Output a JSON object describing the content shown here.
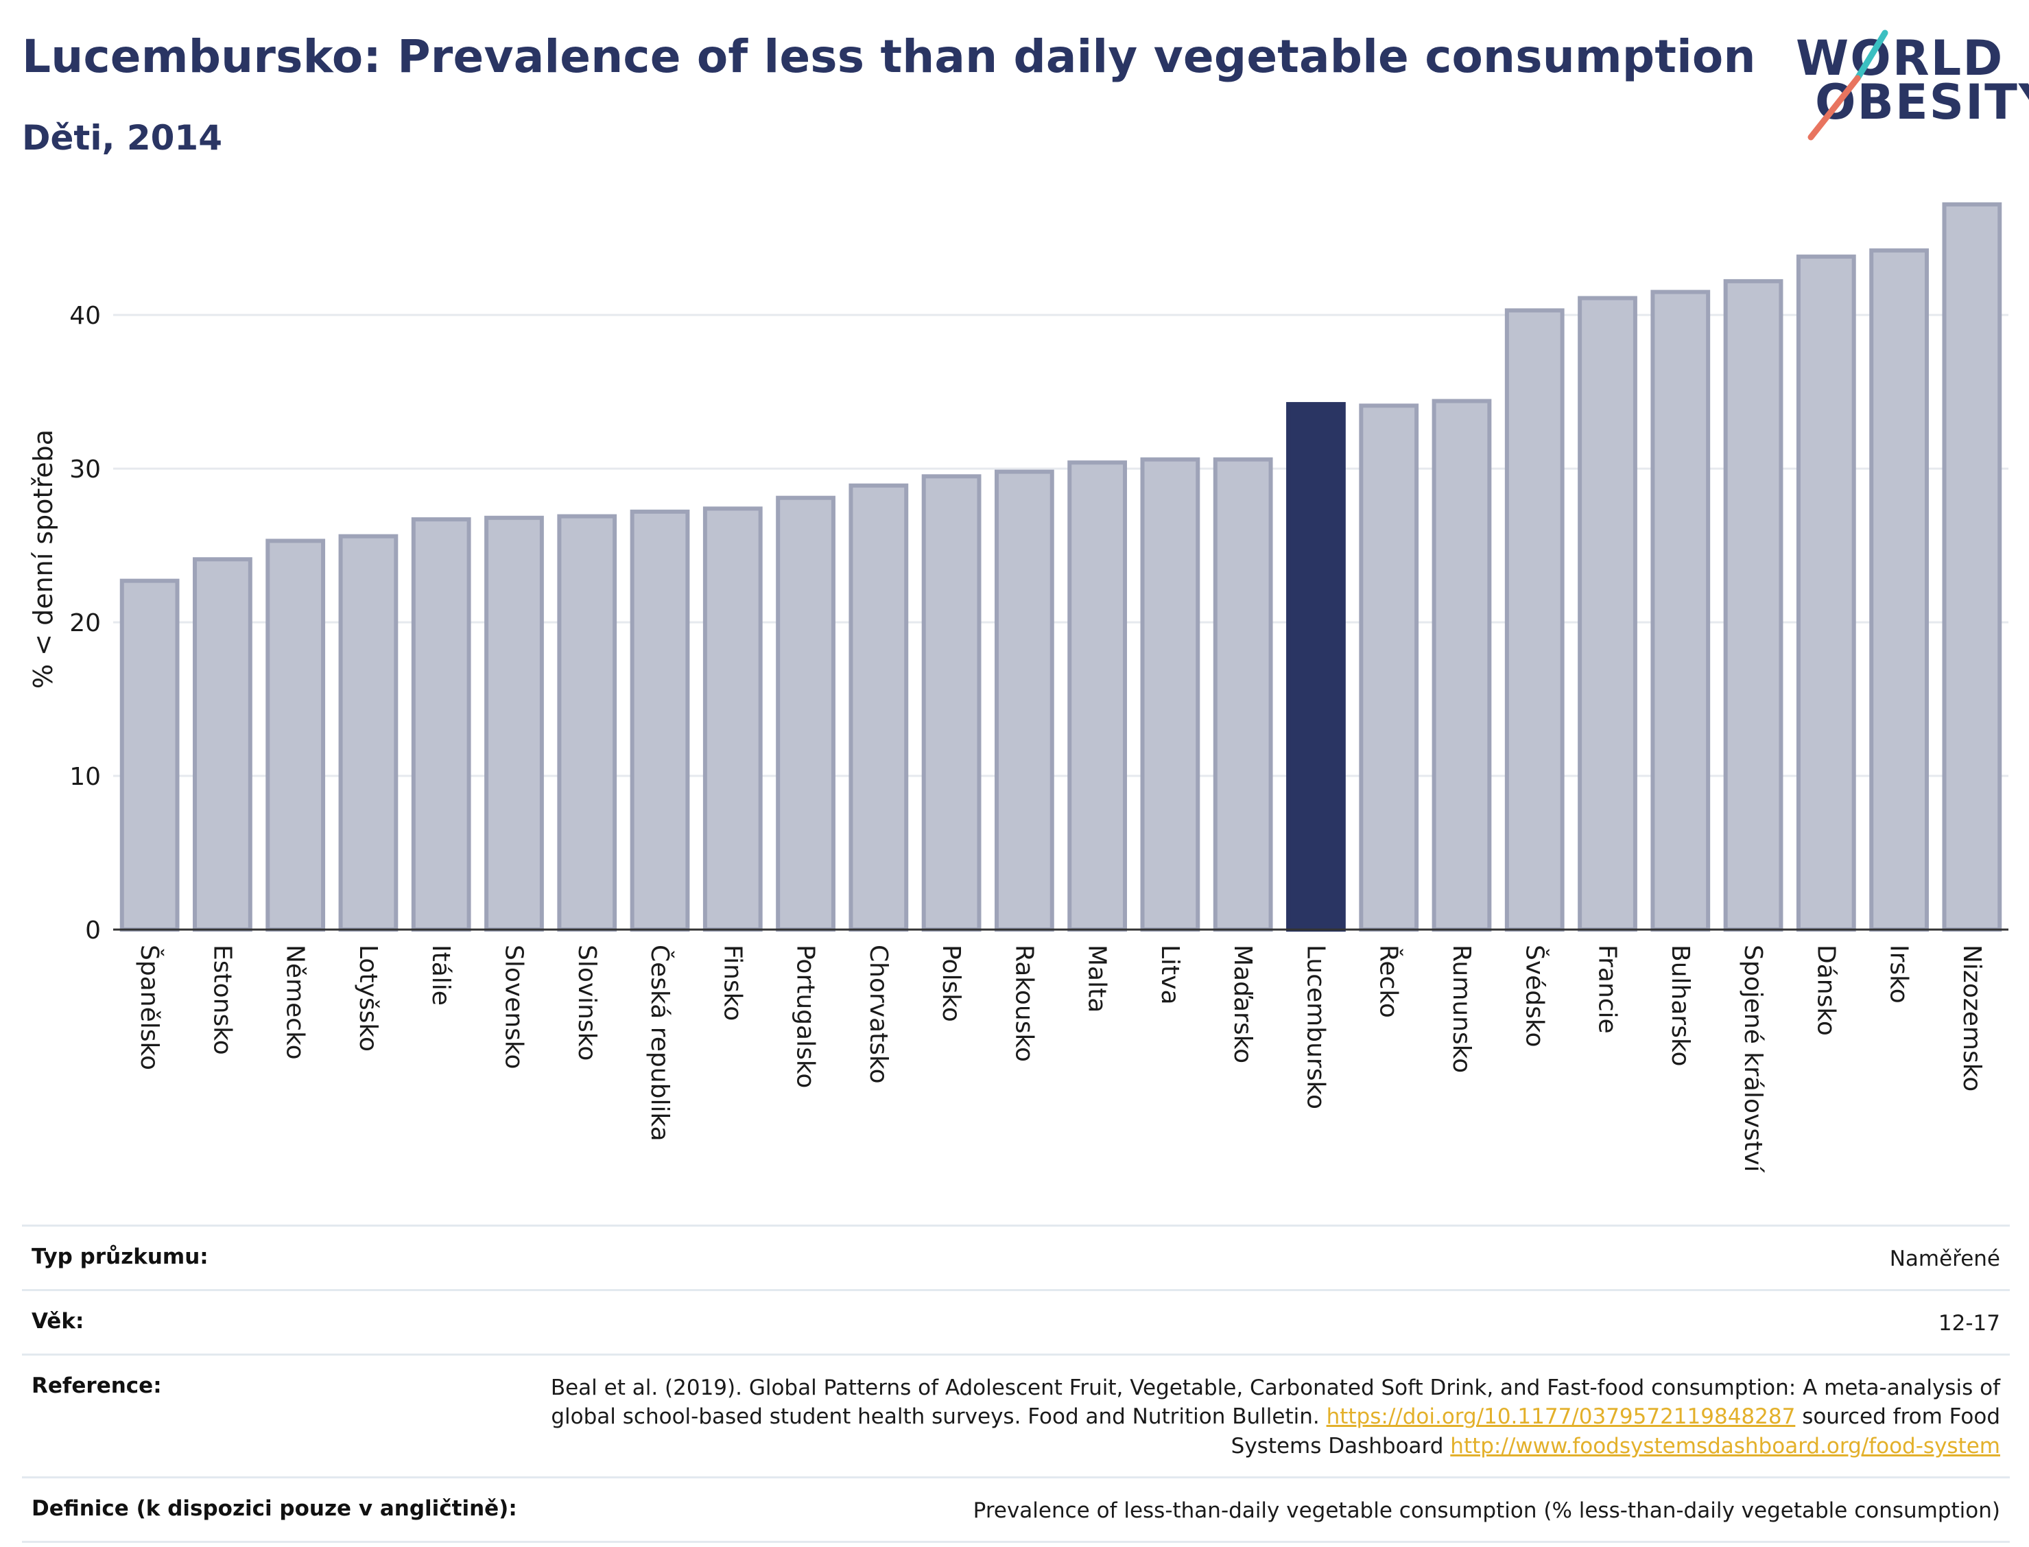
{
  "header": {
    "title": "Lucembursko: Prevalence of less than daily vegetable consumption",
    "subtitle": "Děti, 2014"
  },
  "logo": {
    "line1": "WORLD",
    "line2": "OBESITY",
    "accent_teal": "#3bbfc1",
    "accent_coral": "#e8745f"
  },
  "colors": {
    "bar_default": "#bec2d0",
    "bar_border": "#9ea3b8",
    "bar_highlight": "#2a3563",
    "title": "#2a3563",
    "link": "#e3b02a"
  },
  "chart_data": {
    "type": "bar",
    "ylabel": "% < denní spotřeba",
    "xlabel": "",
    "ylim": [
      0,
      48
    ],
    "yticks": [
      0,
      10,
      20,
      30,
      40
    ],
    "grid": true,
    "highlight": "Lucembursko",
    "categories": [
      "Španělsko",
      "Estonsko",
      "Německo",
      "Lotyšsko",
      "Itálie",
      "Slovensko",
      "Slovinsko",
      "Česká republika",
      "Finsko",
      "Portugalsko",
      "Chorvatsko",
      "Polsko",
      "Rakousko",
      "Malta",
      "Litva",
      "Maďarsko",
      "Lucembursko",
      "Řecko",
      "Rumunsko",
      "Švédsko",
      "Francie",
      "Bulharsko",
      "Spojené království",
      "Dánsko",
      "Irsko",
      "Nizozemsko"
    ],
    "values": [
      22.7,
      24.1,
      25.3,
      25.6,
      26.7,
      26.8,
      26.9,
      27.2,
      27.4,
      28.1,
      28.9,
      29.5,
      29.8,
      30.4,
      30.6,
      30.6,
      34.2,
      34.1,
      34.4,
      40.3,
      41.1,
      41.5,
      42.2,
      43.8,
      44.2,
      47.2
    ]
  },
  "meta": {
    "survey_type": {
      "label": "Typ průzkumu:",
      "value": "Naměřené"
    },
    "age": {
      "label": "Věk:",
      "value": "12-17"
    },
    "reference": {
      "label": "Reference:",
      "text1": "Beal et al. (2019). Global Patterns of Adolescent Fruit, Vegetable, Carbonated Soft Drink, and Fast-food consumption: A meta-analysis of global school-based student health surveys. Food and Nutrition Bulletin.",
      "link1": "https://doi.org/10.1177/0379572119848287",
      "text2": "sourced from Food Systems Dashboard",
      "link2": "http://www.foodsystemsdashboard.org/food-system"
    },
    "definition": {
      "label": "Definice (k dispozici pouze v angličtině):",
      "value": "Prevalence of less-than-daily vegetable consumption (% less-than-daily vegetable consumption)"
    }
  }
}
